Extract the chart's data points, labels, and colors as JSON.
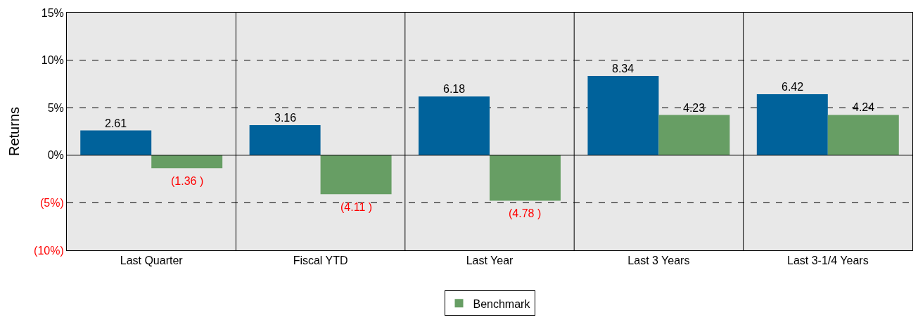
{
  "chart_data": {
    "type": "bar",
    "ylabel": "Returns",
    "categories": [
      "Last Quarter",
      "Fiscal YTD",
      "Last Year",
      "Last 3 Years",
      "Last 3-1/4 Years"
    ],
    "series": [
      {
        "color": "#00629b",
        "values": [
          2.61,
          3.16,
          6.18,
          8.34,
          6.42
        ],
        "value_labels": [
          "2.61",
          "3.16",
          "6.18",
          "8.34",
          "6.42"
        ]
      },
      {
        "name": "Benchmark",
        "color": "#679e64",
        "values": [
          -1.36,
          -4.11,
          -4.78,
          4.23,
          4.24
        ],
        "value_labels": [
          "(1.36 )",
          "(4.11 )",
          "(4.78 )",
          "4.23",
          "4.24"
        ]
      }
    ],
    "ylim": [
      -10,
      15
    ],
    "yticks": [
      {
        "value": -10,
        "label": "(10%)"
      },
      {
        "value": -5,
        "label": "(5%)"
      },
      {
        "value": 0,
        "label": "0%"
      },
      {
        "value": 5,
        "label": "5%"
      },
      {
        "value": 10,
        "label": "10%"
      },
      {
        "value": 15,
        "label": "15%"
      }
    ],
    "grid": "y",
    "legend": "bottom"
  }
}
